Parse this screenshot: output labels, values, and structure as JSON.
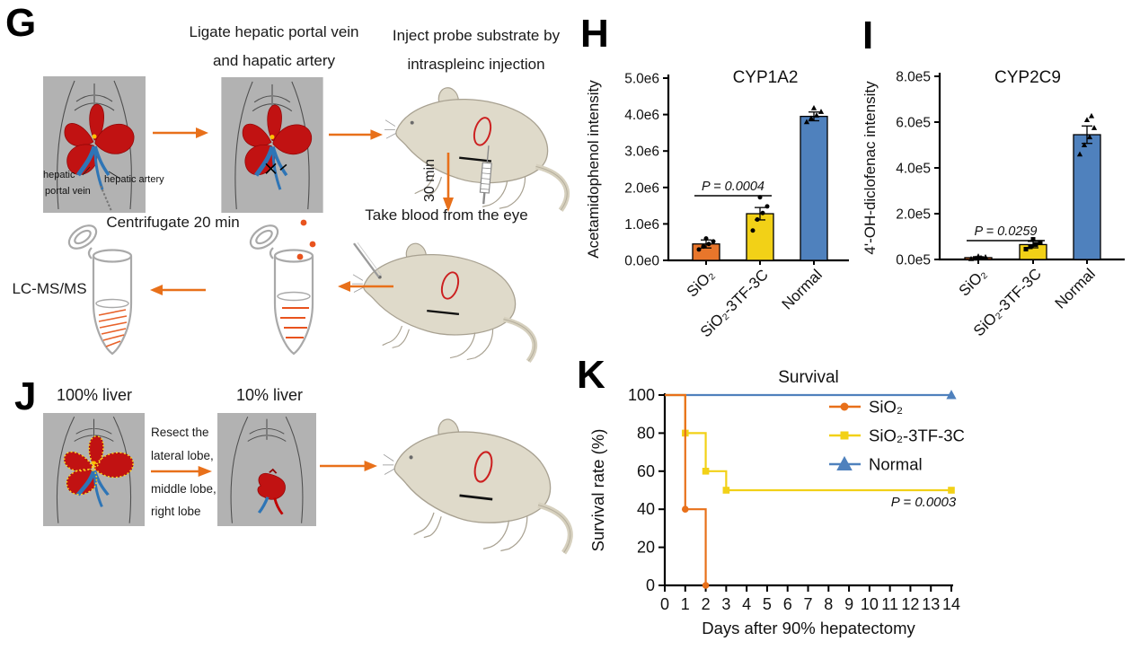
{
  "panels": {
    "g": {
      "label": "G",
      "ligate_line1": "Ligate hepatic portal vein",
      "ligate_line2": "and hapatic artery",
      "inject_line1": "Inject probe substrate by",
      "inject_line2": "intraspleinc injection",
      "hepatic_label_top": "hepatic",
      "hepatic_label_bottom": "portal vein",
      "artery_label": "hepatic artery",
      "incubate_label": "30 min",
      "take_blood": "Take blood from the eye",
      "centrifugate": "Centrifugate 20 min",
      "lcms": "LC-MS/MS"
    },
    "h": {
      "label": "H"
    },
    "i": {
      "label": "I"
    },
    "j": {
      "label": "J",
      "liver_full": "100% liver",
      "liver_small": "10% liver",
      "resect_lines": [
        "Resect the",
        "lateral lobe,",
        "middle lobe,",
        "right lobe"
      ]
    },
    "k": {
      "label": "K"
    }
  },
  "colors": {
    "sio2_orange": "#E8762B",
    "tf3c_yellow": "#F2D117",
    "normal_blue": "#4F81BD",
    "arrow_orange": "#E8701A",
    "liver_red": "#C11212"
  },
  "chart_data": [
    {
      "id": "h",
      "type": "bar",
      "title": "CYP1A2",
      "ylabel": "Acetamidophenol intensity",
      "categories": [
        "SiO₂",
        "SiO₂-3TF-3C",
        "Normal"
      ],
      "values": [
        450000,
        1280000,
        3950000
      ],
      "errors": [
        110000,
        170000,
        120000
      ],
      "points": [
        [
          300000,
          380000,
          450000,
          520000,
          600000
        ],
        [
          820000,
          1120000,
          1300000,
          1480000,
          1730000
        ],
        [
          3800000,
          3900000,
          3980000,
          4080000,
          4180000
        ]
      ],
      "point_markers": [
        "circle",
        "circle",
        "triangle"
      ],
      "bar_colors": [
        "#E8762B",
        "#F2D117",
        "#4F81BD"
      ],
      "ymax": 5000000,
      "yticks": [
        "0.0e0",
        "1.0e6",
        "2.0e6",
        "3.0e6",
        "4.0e6",
        "5.0e6"
      ],
      "ytick_values": [
        0,
        1000000,
        2000000,
        3000000,
        4000000,
        5000000
      ],
      "pvalue": "P = 0.0004",
      "p_between": [
        0,
        1
      ],
      "grid": false
    },
    {
      "id": "i",
      "type": "bar",
      "title": "CYP2C9",
      "ylabel": "4'-OH-diclofenac intensity",
      "categories": [
        "SiO₂",
        "SiO₂-3TF-3C",
        "Normal"
      ],
      "values": [
        8000,
        65000,
        545000
      ],
      "errors": [
        4000,
        14000,
        38000
      ],
      "points": [
        [
          3000,
          5000,
          8000,
          11000,
          14000
        ],
        [
          45000,
          55000,
          65000,
          75000,
          88000
        ],
        [
          460000,
          500000,
          535000,
          575000,
          610000,
          627000
        ]
      ],
      "point_markers": [
        "triangle",
        "square",
        "triangle"
      ],
      "bar_colors": [
        "#E8762B",
        "#F2D117",
        "#4F81BD"
      ],
      "ymax": 800000,
      "yticks": [
        "0.0e5",
        "2.0e5",
        "4.0e5",
        "6.0e5",
        "8.0e5"
      ],
      "ytick_values": [
        0,
        200000,
        400000,
        600000,
        800000
      ],
      "pvalue": "P = 0.0259",
      "p_between": [
        0,
        1
      ],
      "grid": false
    },
    {
      "id": "k",
      "type": "line",
      "title": "Survival",
      "xlabel": "Days after 90% hepatectomy",
      "ylabel": "Survival rate (%)",
      "xlim": [
        0,
        14
      ],
      "ylim": [
        0,
        100
      ],
      "xticks": [
        0,
        1,
        2,
        3,
        4,
        5,
        6,
        7,
        8,
        9,
        10,
        11,
        12,
        13,
        14
      ],
      "yticks": [
        0,
        20,
        40,
        60,
        80,
        100
      ],
      "legend_position": "top-right-inside",
      "legend_order": [
        "SiO₂",
        "SiO₂-3TF-3C",
        "Normal"
      ],
      "pvalue": "P = 0.0003",
      "grid": false,
      "series": [
        {
          "name": "Normal",
          "color": "#4F81BD",
          "marker": "triangle",
          "steps": [
            [
              0,
              100
            ],
            [
              14,
              100
            ]
          ],
          "marker_points": [
            [
              14,
              100
            ]
          ]
        },
        {
          "name": "SiO₂-3TF-3C",
          "color": "#F2D117",
          "marker": "square",
          "steps": [
            [
              0,
              100
            ],
            [
              1,
              100
            ],
            [
              1,
              80
            ],
            [
              2,
              80
            ],
            [
              2,
              60
            ],
            [
              3,
              60
            ],
            [
              3,
              50
            ],
            [
              14,
              50
            ]
          ],
          "marker_points": [
            [
              1,
              80
            ],
            [
              2,
              60
            ],
            [
              3,
              50
            ],
            [
              14,
              50
            ]
          ]
        },
        {
          "name": "SiO₂",
          "color": "#E8701A",
          "marker": "circle",
          "steps": [
            [
              0,
              100
            ],
            [
              1,
              100
            ],
            [
              1,
              40
            ],
            [
              2,
              40
            ],
            [
              2,
              0
            ]
          ],
          "marker_points": [
            [
              1,
              40
            ],
            [
              2,
              0
            ]
          ]
        }
      ]
    }
  ]
}
